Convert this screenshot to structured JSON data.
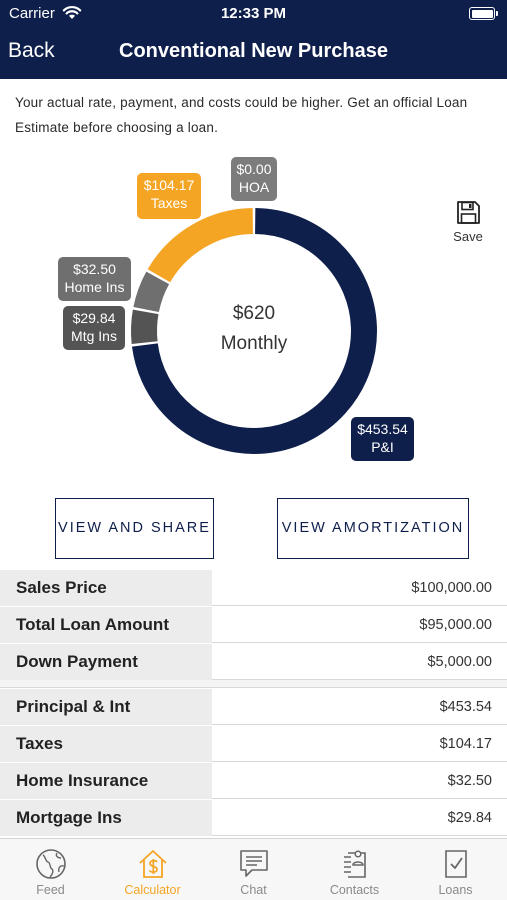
{
  "status_bar": {
    "carrier": "Carrier",
    "time": "12:33 PM"
  },
  "nav": {
    "back_label": "Back",
    "title": "Conventional New Purchase"
  },
  "disclaimer": "Your actual rate, payment, and costs could be higher. Get an official Loan Estimate before choosing a loan.",
  "save_label": "Save",
  "summary": {
    "total_amount": "$620",
    "period_label": "Monthly"
  },
  "breakdown": [
    {
      "key": "pi",
      "amount": "$453.54",
      "label": "P&I",
      "value": 453.54,
      "color": "#0f1f4b"
    },
    {
      "key": "mtgins",
      "amount": "$29.84",
      "label": "Mtg Ins",
      "value": 29.84,
      "color": "#545454"
    },
    {
      "key": "homeins",
      "amount": "$32.50",
      "label": "Home Ins",
      "value": 32.5,
      "color": "#6f6f6f"
    },
    {
      "key": "taxes",
      "amount": "$104.17",
      "label": "Taxes",
      "value": 104.17,
      "color": "#f5a524"
    },
    {
      "key": "hoa",
      "amount": "$0.00",
      "label": "HOA",
      "value": 0.0,
      "color": "#7c7c7c"
    }
  ],
  "buttons": {
    "share_label": "VIEW AND SHARE",
    "amortization_label": "VIEW AMORTIZATION"
  },
  "loan_details": [
    {
      "label": "Sales Price",
      "value": "$100,000.00"
    },
    {
      "label": "Total Loan Amount",
      "value": "$95,000.00"
    },
    {
      "label": "Down Payment",
      "value": "$5,000.00"
    }
  ],
  "payment_details": [
    {
      "label": "Principal & Int",
      "value": "$453.54"
    },
    {
      "label": "Taxes",
      "value": "$104.17"
    },
    {
      "label": "Home Insurance",
      "value": "$32.50"
    },
    {
      "label": "Mortgage Ins",
      "value": "$29.84"
    }
  ],
  "tabs": [
    {
      "label": "Feed",
      "icon": "globe-icon",
      "active": false
    },
    {
      "label": "Calculator",
      "icon": "house-dollar-icon",
      "active": true
    },
    {
      "label": "Chat",
      "icon": "chat-bubble-icon",
      "active": false
    },
    {
      "label": "Contacts",
      "icon": "contact-card-icon",
      "active": false
    },
    {
      "label": "Loans",
      "icon": "document-check-icon",
      "active": false
    }
  ],
  "colors": {
    "brand_navy": "#0f1f4b",
    "accent_orange": "#f5a524"
  }
}
